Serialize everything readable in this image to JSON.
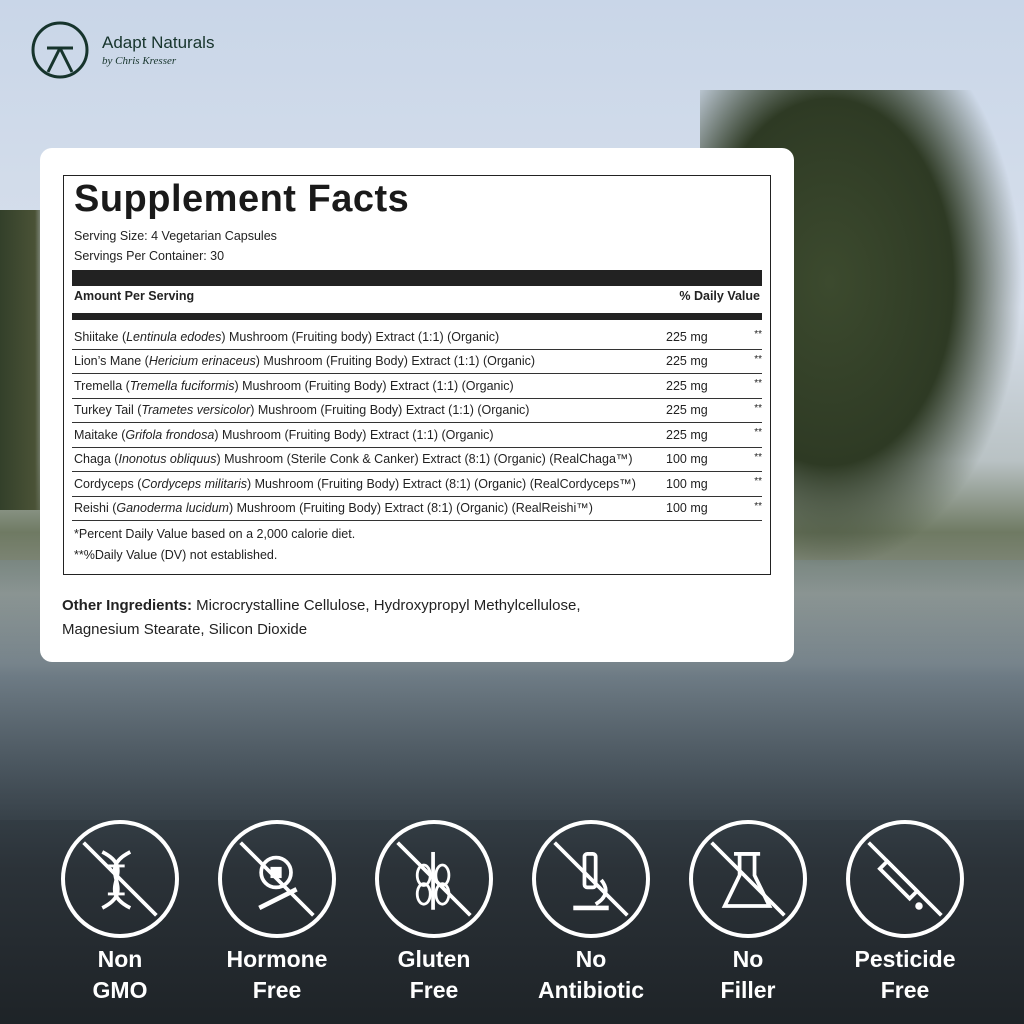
{
  "brand": {
    "name": "Adapt Naturals",
    "tagline": "by Chris Kresser"
  },
  "facts": {
    "title": "Supplement Facts",
    "serving_size": "Serving Size: 4 Vegetarian Capsules",
    "servings_per_container": "Servings Per Container: 30",
    "amount_header": "Amount Per Serving",
    "dv_header": "% Daily Value",
    "rows": [
      {
        "pre": "Shiitake (",
        "latin": "Lentinula edodes",
        "post": ") Mushroom (Fruiting body) Extract (1:1) (Organic)",
        "amount": "225 mg",
        "dv": "**"
      },
      {
        "pre": "Lion’s Mane (",
        "latin": "Hericium erinaceus",
        "post": ") Mushroom (Fruiting Body) Extract (1:1) (Organic)",
        "amount": "225 mg",
        "dv": "**"
      },
      {
        "pre": "Tremella (",
        "latin": "Tremella fuciformis",
        "post": ") Mushroom (Fruiting Body) Extract (1:1) (Organic)",
        "amount": "225 mg",
        "dv": "**"
      },
      {
        "pre": "Turkey Tail (",
        "latin": "Trametes versicolor",
        "post": ") Mushroom (Fruiting Body) Extract (1:1) (Organic)",
        "amount": "225 mg",
        "dv": "**"
      },
      {
        "pre": "Maitake (",
        "latin": "Grifola frondosa",
        "post": ") Mushroom (Fruiting Body) Extract (1:1) (Organic)",
        "amount": "225 mg",
        "dv": "**"
      },
      {
        "pre": "Chaga (",
        "latin": "Inonotus obliquus",
        "post": ") Mushroom (Sterile Conk & Canker) Extract (8:1) (Organic) (RealChaga™)",
        "amount": "100 mg",
        "dv": "**"
      },
      {
        "pre": "Cordyceps (",
        "latin": "Cordyceps militaris",
        "post": ") Mushroom (Fruiting Body) Extract (8:1) (Organic) (RealCordyceps™)",
        "amount": "100 mg",
        "dv": "**"
      },
      {
        "pre": "Reishi (",
        "latin": "Ganoderma lucidum",
        "post": ") Mushroom (Fruiting Body) Extract (8:1) (Organic) (RealReishi™)",
        "amount": "100 mg",
        "dv": "**"
      }
    ],
    "footnote1": "*Percent Daily Value based on a 2,000 calorie diet.",
    "footnote2": "**%Daily Value (DV) not established."
  },
  "other": {
    "label": "Other Ingredients:",
    "text": " Microcrystalline Cellulose, Hydroxypropyl Methylcellulose, Magnesium Stearate, Silicon Dioxide"
  },
  "badges": [
    {
      "icon": "dna-crossed-icon",
      "line1": "Non",
      "line2": "GMO"
    },
    {
      "icon": "syringe-crossed-icon",
      "line1": "Hormone",
      "line2": "Free"
    },
    {
      "icon": "wheat-crossed-icon",
      "line1": "Gluten",
      "line2": "Free"
    },
    {
      "icon": "microscope-crossed-icon",
      "line1": "No",
      "line2": "Antibiotic"
    },
    {
      "icon": "flask-crossed-icon",
      "line1": "No",
      "line2": "Filler"
    },
    {
      "icon": "dropper-crossed-icon",
      "line1": "Pesticide",
      "line2": "Free"
    }
  ]
}
